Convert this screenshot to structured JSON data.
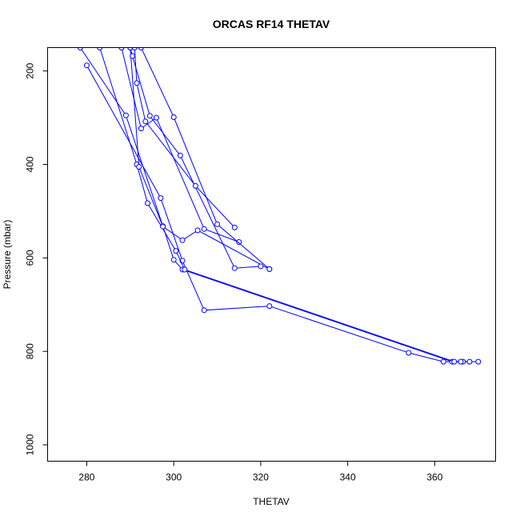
{
  "chart_data": {
    "type": "line",
    "title": "ORCAS RF14 THETAV",
    "xlabel": "THETAV",
    "ylabel": "Pressure (mbar)",
    "xlim": [
      271,
      374
    ],
    "ylim": [
      1035,
      150
    ],
    "y_reversed": true,
    "x_ticks": [
      280,
      300,
      320,
      340,
      360
    ],
    "y_ticks": [
      200,
      400,
      600,
      800,
      1000
    ],
    "grid": false,
    "legend": "none",
    "markers": "open-circle",
    "color": "#0000ff",
    "series": [
      {
        "x": [
          280,
          297,
          302,
          307,
          322,
          354,
          362,
          370
        ],
        "y": [
          188,
          472,
          606,
          712,
          703,
          803,
          822,
          822
        ]
      },
      {
        "x": [
          278.5,
          289,
          297.5,
          300,
          302,
          364,
          366.5,
          368
        ],
        "y": [
          150,
          295,
          532,
          604,
          625,
          822,
          822,
          822
        ]
      },
      {
        "x": [
          283,
          291.5,
          294,
          300.5,
          302.5,
          364.5,
          366
        ],
        "y": [
          150,
          400,
          483,
          585,
          625,
          822,
          822
        ]
      },
      {
        "x": [
          290,
          292,
          297.5,
          302,
          305.5,
          322
        ],
        "y": [
          150,
          405,
          533,
          562,
          541,
          624
        ]
      },
      {
        "x": [
          288,
          292.5,
          296,
          307,
          315
        ],
        "y": [
          150,
          323,
          300,
          538,
          566
        ]
      },
      {
        "x": [
          290,
          290.5,
          294.5,
          301.5,
          314,
          320
        ],
        "y": [
          150,
          168,
          296,
          381,
          622,
          618
        ]
      },
      {
        "x": [
          291,
          291.5,
          293.5,
          305,
          314
        ],
        "y": [
          150,
          226,
          308,
          446,
          535
        ]
      },
      {
        "x": [
          292.5,
          300,
          310,
          322
        ],
        "y": [
          150,
          299,
          528,
          624
        ]
      }
    ]
  }
}
